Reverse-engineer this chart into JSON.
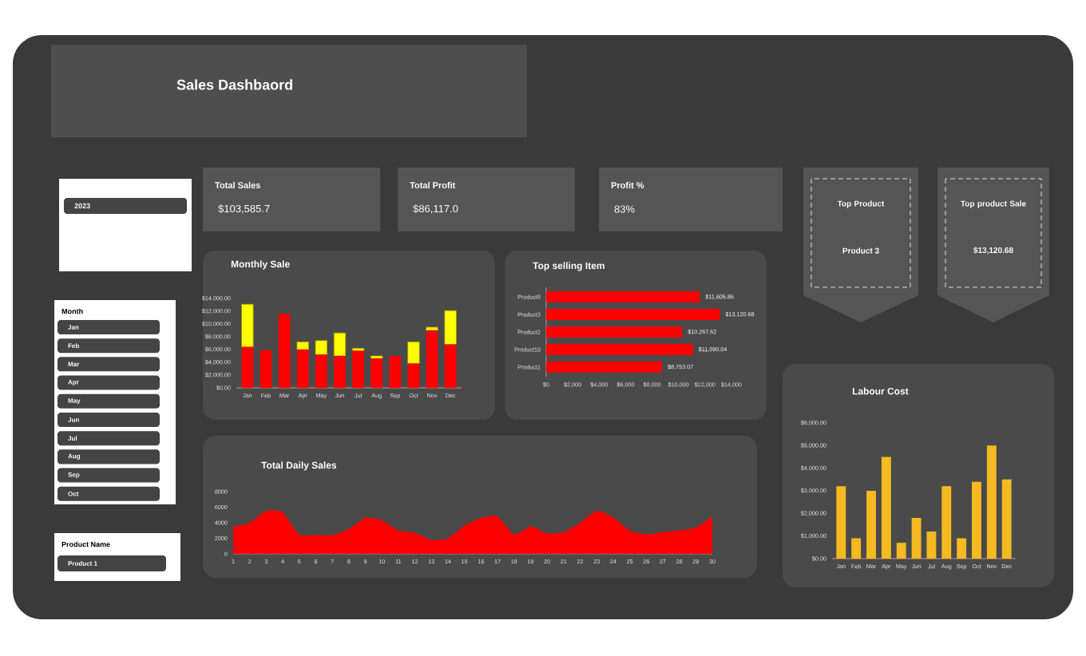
{
  "chart_data": [
    {
      "type": "other",
      "title": "Sales Dashbaord",
      "annotations": [
        "Total Sales",
        "$103,585.7",
        "Total Profit",
        "$86,117.0",
        "Profit %",
        "83%",
        "Top Product",
        "Product 3",
        "Top product Sale",
        "$13,120.68",
        "2023",
        "Month",
        "Jan",
        "Feb",
        "Mar",
        "Apr",
        "May",
        "Jun",
        "Jul",
        "Aug",
        "Sep",
        "Oct",
        "Product Name",
        "Product 1"
      ]
    },
    {
      "type": "bar",
      "title": "Monthly Sale",
      "stacked": true,
      "categories": [
        "Jan",
        "Feb",
        "Mar",
        "Apr",
        "May",
        "Jun",
        "Jul",
        "Aug",
        "Sep",
        "Oct",
        "Nov",
        "Dec"
      ],
      "series": [
        {
          "color": "#ff0000",
          "values": [
            6400,
            5900,
            11600,
            6000,
            5200,
            5000,
            5800,
            4600,
            5000,
            3800,
            9000,
            6800
          ]
        },
        {
          "color": "#ffff00",
          "values": [
            6700,
            null,
            null,
            1200,
            2200,
            3600,
            400,
            400,
            null,
            3400,
            500,
            5300
          ]
        }
      ],
      "ylim": [
        0,
        14000
      ],
      "yticks": [
        {
          "value": 0,
          "label": "$0.00"
        },
        {
          "value": 2000,
          "label": "$2,000.00"
        },
        {
          "value": 4000,
          "label": "$4,000.00"
        },
        {
          "value": 6000,
          "label": "$6,000.00"
        },
        {
          "value": 8000,
          "label": "$8,000.00"
        },
        {
          "value": 10000,
          "label": "$10,000.00"
        },
        {
          "value": 12000,
          "label": "$12,000.00"
        },
        {
          "value": 14000,
          "label": "$14,000.00"
        }
      ]
    },
    {
      "type": "bar",
      "title": "Top selling Item",
      "orientation": "horizontal",
      "categories": [
        "Product8",
        "Product3",
        "Product2",
        "Product10",
        "Product1"
      ],
      "values": [
        11605.86,
        13120.68,
        10267.62,
        11090.04,
        8753.07
      ],
      "color": "#ff0000",
      "value_labels": [
        "$11,605.86",
        "$13,120.68",
        "$10,267.62",
        "$11,090.04",
        "$8,753.07"
      ],
      "xlim": [
        0,
        14000
      ],
      "xticks": [
        {
          "value": 0,
          "label": "$0"
        },
        {
          "value": 2000,
          "label": "$2,000"
        },
        {
          "value": 4000,
          "label": "$4,000"
        },
        {
          "value": 6000,
          "label": "$6,000"
        },
        {
          "value": 8000,
          "label": "$8,000"
        },
        {
          "value": 10000,
          "label": "$10,000"
        },
        {
          "value": 12000,
          "label": "$12,000"
        },
        {
          "value": 14000,
          "label": "$14,000"
        }
      ]
    },
    {
      "type": "area",
      "title": "Total Daily Sales",
      "color": "#ff0000",
      "x": [
        1,
        2,
        3,
        4,
        5,
        6,
        7,
        8,
        9,
        10,
        11,
        12,
        13,
        14,
        15,
        16,
        17,
        18,
        19,
        20,
        21,
        22,
        23,
        24,
        25,
        26,
        27,
        28,
        29,
        30
      ],
      "values": [
        3500,
        4000,
        5500,
        5300,
        2500,
        2400,
        2400,
        3200,
        4600,
        4300,
        3000,
        2700,
        1800,
        2000,
        3600,
        4600,
        4800,
        2500,
        3500,
        2600,
        2800,
        4000,
        5500,
        4700,
        3000,
        2500,
        2800,
        3000,
        3400,
        4800
      ],
      "xlim": [
        1,
        30
      ],
      "xticks": [
        1,
        2,
        3,
        4,
        5,
        6,
        7,
        8,
        9,
        10,
        11,
        12,
        13,
        14,
        15,
        16,
        17,
        18,
        19,
        20,
        21,
        22,
        23,
        24,
        25,
        26,
        27,
        28,
        29,
        30
      ],
      "ylim": [
        0,
        8000
      ],
      "yticks": [
        0,
        2000,
        4000,
        6000,
        8000
      ]
    },
    {
      "type": "bar",
      "title": "Labour Cost",
      "categories": [
        "Jan",
        "Feb",
        "Mar",
        "Apr",
        "May",
        "Jun",
        "Jul",
        "Aug",
        "Sep",
        "Oct",
        "Nov",
        "Dec"
      ],
      "values": [
        3200,
        900,
        3000,
        4500,
        700,
        1800,
        1200,
        3200,
        900,
        3400,
        5000,
        3500
      ],
      "color": "#f5b921",
      "ylim": [
        0,
        6000
      ],
      "yticks": [
        {
          "value": 0,
          "label": "$0.00"
        },
        {
          "value": 1000,
          "label": "$1,000.00"
        },
        {
          "value": 2000,
          "label": "$2,000.00"
        },
        {
          "value": 3000,
          "label": "$3,000.00"
        },
        {
          "value": 4000,
          "label": "$4,000.00"
        },
        {
          "value": 5000,
          "label": "$5,000.00"
        },
        {
          "value": 6000,
          "label": "$6,000.00"
        }
      ]
    }
  ]
}
